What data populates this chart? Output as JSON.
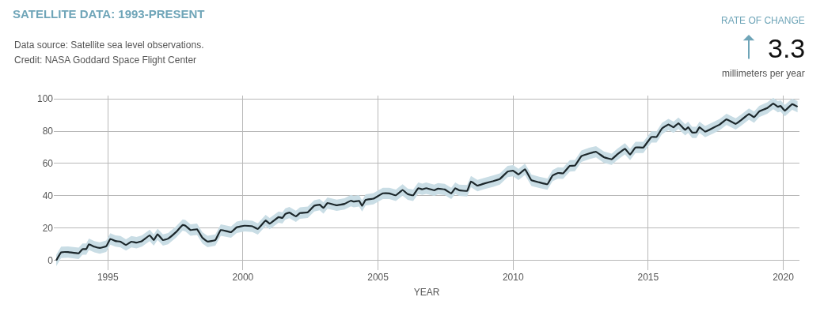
{
  "chart_data": {
    "type": "line",
    "title": "SATELLITE DATA: 1993-PRESENT",
    "xlabel": "YEAR",
    "annotations": [
      "Data source: Satellite sea level observations.",
      "Credit: NASA Goddard Space Flight Center",
      "RATE OF CHANGE",
      "3.3",
      "millimeters per year"
    ],
    "x": [
      1993.09,
      1993.27,
      1993.53,
      1993.92,
      1994.06,
      1994.2,
      1994.3,
      1994.5,
      1994.7,
      1994.94,
      1995.09,
      1995.28,
      1995.47,
      1995.67,
      1995.87,
      1996.06,
      1996.26,
      1996.55,
      1996.7,
      1996.84,
      1997.04,
      1997.23,
      1997.52,
      1997.77,
      1997.87,
      1998.06,
      1998.3,
      1998.5,
      1998.69,
      1998.98,
      1999.18,
      1999.56,
      1999.77,
      2000.06,
      2000.35,
      2000.55,
      2000.84,
      2000.99,
      2001.32,
      2001.46,
      2001.57,
      2001.72,
      2001.96,
      2002.11,
      2002.4,
      2002.64,
      2002.84,
      2002.98,
      2003.13,
      2003.47,
      2003.76,
      2004.0,
      2004.1,
      2004.3,
      2004.41,
      2004.54,
      2004.83,
      2005.18,
      2005.42,
      2005.66,
      2005.91,
      2006.1,
      2006.3,
      2006.49,
      2006.64,
      2006.78,
      2007.08,
      2007.22,
      2007.47,
      2007.71,
      2007.86,
      2008.0,
      2008.3,
      2008.44,
      2008.68,
      2008.93,
      2009.27,
      2009.51,
      2009.8,
      2010.0,
      2010.2,
      2010.44,
      2010.68,
      2010.97,
      2011.27,
      2011.46,
      2011.66,
      2011.85,
      2012.1,
      2012.29,
      2012.53,
      2012.82,
      2013.07,
      2013.36,
      2013.65,
      2013.85,
      2014.14,
      2014.33,
      2014.53,
      2014.82,
      2015.12,
      2015.31,
      2015.51,
      2015.75,
      2015.94,
      2016.12,
      2016.37,
      2016.48,
      2016.63,
      2016.78,
      2016.9,
      2017.11,
      2017.41,
      2017.65,
      2017.9,
      2018.24,
      2018.43,
      2018.73,
      2018.92,
      2019.11,
      2019.41,
      2019.63,
      2019.8,
      2019.9,
      2020.06,
      2020.33,
      2020.53
    ],
    "series": [
      {
        "color": "#1c272b",
        "values": [
          0,
          5,
          5.2,
          4.4,
          7,
          7,
          10,
          8.5,
          7.7,
          8.8,
          13.3,
          12,
          11.6,
          9.6,
          11.6,
          11,
          12,
          15.5,
          12.6,
          16.2,
          12.6,
          13.5,
          17.5,
          21.9,
          21.5,
          18.8,
          19.3,
          14,
          11.7,
          12.6,
          18.8,
          17.5,
          20.5,
          21.5,
          21.1,
          19.5,
          24.7,
          22.8,
          26.8,
          26.3,
          28.8,
          29.6,
          27.3,
          29.3,
          29.8,
          33.8,
          34.5,
          32.5,
          35.5,
          34.1,
          35,
          37,
          36.4,
          36.9,
          33.8,
          37.4,
          38.2,
          41.5,
          41.5,
          40.3,
          43.6,
          41,
          40.3,
          44.7,
          44,
          44.7,
          43.4,
          44.4,
          43.9,
          41.5,
          44.7,
          43.4,
          43.1,
          48.8,
          46.3,
          47.6,
          49.1,
          50.4,
          55,
          55.5,
          53.2,
          56.4,
          49.6,
          48.3,
          47.2,
          52.5,
          54.1,
          53.9,
          58.5,
          58.7,
          64.5,
          66.2,
          67.2,
          63.9,
          62.6,
          65.5,
          69.1,
          65.5,
          69.9,
          69.9,
          76.4,
          76.4,
          81.6,
          84.1,
          82.4,
          84.9,
          80.8,
          82.4,
          79.2,
          79.2,
          82.4,
          79.7,
          82.1,
          84.1,
          87.3,
          84.5,
          86.7,
          90.6,
          88.6,
          92.2,
          94.3,
          97.1,
          95.1,
          95.6,
          92.7,
          96.7,
          95.1
        ],
        "lower": [
          -3.5,
          1.5,
          1.7,
          0.9,
          3.5,
          3.5,
          6.5,
          5,
          4.2,
          5.3,
          9.8,
          8.5,
          8.1,
          6.1,
          8.1,
          7.5,
          8.5,
          12,
          9.1,
          12.7,
          9.1,
          10,
          14,
          18.4,
          18,
          15.3,
          15.8,
          10.5,
          8.2,
          9.1,
          15.3,
          14,
          17,
          18,
          17.6,
          16,
          21.2,
          19.3,
          23.3,
          22.8,
          25.3,
          26.1,
          23.8,
          25.8,
          26.3,
          30.3,
          31,
          29,
          32,
          30.6,
          31.5,
          33.5,
          32.9,
          33.4,
          30.3,
          33.9,
          34.7,
          38,
          38,
          36.8,
          40.1,
          37.5,
          36.8,
          41.2,
          40.5,
          41.2,
          39.9,
          40.9,
          40.4,
          38,
          41.2,
          39.9,
          39.6,
          45.3,
          42.8,
          44.1,
          45.6,
          46.9,
          51.5,
          52,
          49.7,
          52.9,
          46.1,
          44.8,
          43.7,
          49,
          50.6,
          50.4,
          55,
          55.2,
          61,
          62.7,
          63.7,
          60.4,
          59.1,
          62,
          65.6,
          62,
          66.4,
          66.4,
          72.9,
          72.9,
          78.1,
          80.6,
          78.9,
          81.4,
          77.3,
          78.9,
          75.7,
          75.7,
          78.9,
          76.2,
          78.6,
          80.6,
          83.8,
          81,
          83.2,
          87.1,
          85.1,
          88.7,
          90.8,
          93.6,
          91.6,
          92.1,
          89.2,
          93.2,
          91.6
        ],
        "upper": [
          3.5,
          8.5,
          8.7,
          7.9,
          10.5,
          10.5,
          13.5,
          12,
          11.2,
          12.3,
          16.8,
          15.5,
          15.1,
          13.1,
          15.1,
          14.5,
          15.5,
          19,
          16.1,
          19.7,
          16.1,
          17,
          21,
          25.4,
          25,
          22.3,
          22.8,
          17.5,
          15.2,
          16.1,
          22.3,
          21,
          24,
          25,
          24.6,
          23,
          28.2,
          26.3,
          30.3,
          29.8,
          32.3,
          33.1,
          30.8,
          32.8,
          33.3,
          37.3,
          38,
          36,
          39,
          37.6,
          38.5,
          40.5,
          39.9,
          40.4,
          37.3,
          40.9,
          41.7,
          45,
          45,
          43.8,
          47.1,
          44.5,
          43.8,
          48.2,
          47.5,
          48.2,
          46.9,
          47.9,
          47.4,
          45,
          48.2,
          46.9,
          46.6,
          52.3,
          49.8,
          51.1,
          52.6,
          53.9,
          58.5,
          59,
          56.7,
          59.9,
          53.1,
          51.8,
          50.7,
          56,
          57.6,
          57.4,
          62,
          62.2,
          68,
          69.7,
          70.7,
          67.4,
          66.1,
          69,
          72.6,
          69,
          73.4,
          73.4,
          79.9,
          79.9,
          85.1,
          87.6,
          85.9,
          88.4,
          84.3,
          85.9,
          82.7,
          82.7,
          85.9,
          83.2,
          85.6,
          87.6,
          90.8,
          88,
          90.2,
          94.1,
          92.1,
          95.7,
          97.8,
          100.6,
          98.6,
          99.1,
          96.2,
          100.2,
          98.6
        ]
      }
    ],
    "xlim": [
      1993,
      2020.6
    ],
    "ylim": [
      -6,
      102
    ],
    "xticks": [
      1995,
      2000,
      2005,
      2010,
      2015,
      2020
    ],
    "yticks": [
      0,
      20,
      40,
      60,
      80,
      100
    ],
    "grid": true,
    "marker": "none",
    "line_style": "solid"
  }
}
